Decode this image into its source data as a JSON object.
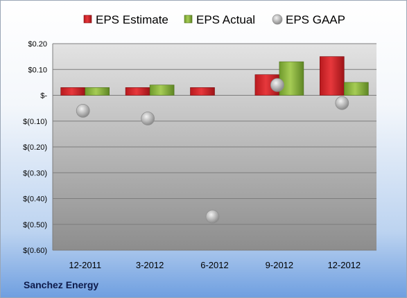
{
  "chart_data": {
    "type": "bar",
    "categories": [
      "12-2011",
      "3-2012",
      "6-2012",
      "9-2012",
      "12-2012"
    ],
    "series": [
      {
        "name": "EPS Estimate",
        "kind": "bar",
        "color": "#d0252a",
        "values": [
          0.03,
          0.03,
          0.03,
          0.08,
          0.15
        ]
      },
      {
        "name": "EPS Actual",
        "kind": "bar",
        "color": "#8cb33c",
        "values": [
          0.03,
          0.04,
          null,
          0.13,
          0.05
        ]
      },
      {
        "name": "EPS GAAP",
        "kind": "marker",
        "color": "#b8b8b8",
        "values": [
          -0.06,
          -0.09,
          -0.47,
          0.04,
          -0.03
        ]
      }
    ],
    "yticks": [
      0.2,
      0.1,
      0,
      -0.1,
      -0.2,
      -0.3,
      -0.4,
      -0.5,
      -0.6
    ],
    "ytick_labels": [
      "$0.20",
      "$0.10",
      "$-",
      "$(0.10)",
      "$(0.20)",
      "$(0.30)",
      "$(0.40)",
      "$(0.50)",
      "$(0.60)"
    ],
    "ylim": [
      -0.6,
      0.2
    ],
    "grid": true,
    "legend": "top"
  },
  "footer": {
    "company": "Sanchez Energy"
  }
}
